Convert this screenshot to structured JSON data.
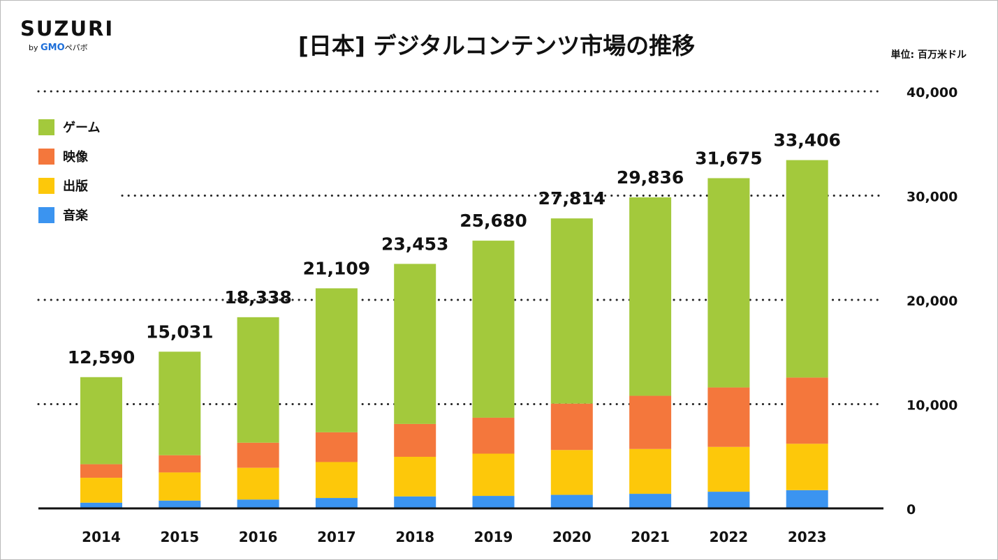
{
  "logo": {
    "main": "SUZURI",
    "by": "by",
    "brand": "GMO",
    "company": "ペパボ"
  },
  "unit_label": "単位: 百万米ドル",
  "colors": {
    "game": "#a3c93c",
    "video": "#f4773c",
    "publishing": "#fdc80a",
    "music": "#3b94f0"
  },
  "chart_data": {
    "type": "bar",
    "stacked": true,
    "title": "[日本] デジタルコンテンツ市場の推移",
    "xlabel": "",
    "ylabel": "",
    "ylim": [
      0,
      40000
    ],
    "yticks": [
      0,
      10000,
      20000,
      30000,
      40000
    ],
    "ytick_labels": [
      "0",
      "10,000",
      "20,000",
      "30,000",
      "40,000"
    ],
    "grid": "dotted horizontal",
    "legend_position": "top-left",
    "categories": [
      "2014",
      "2015",
      "2016",
      "2017",
      "2018",
      "2019",
      "2020",
      "2021",
      "2022",
      "2023"
    ],
    "series": [
      {
        "key": "music",
        "name": "音楽",
        "values": [
          550,
          750,
          850,
          1000,
          1150,
          1200,
          1300,
          1400,
          1600,
          1750
        ]
      },
      {
        "key": "publishing",
        "name": "出版",
        "values": [
          2390,
          2700,
          3050,
          3450,
          3800,
          4050,
          4300,
          4300,
          4300,
          4450
        ]
      },
      {
        "key": "video",
        "name": "映像",
        "values": [
          1300,
          1650,
          2400,
          2850,
          3150,
          3450,
          4450,
          5100,
          5700,
          6350
        ]
      },
      {
        "key": "game",
        "name": "ゲーム",
        "values": [
          8350,
          9931,
          12038,
          13809,
          15353,
          16980,
          17764,
          19036,
          20075,
          20856
        ]
      }
    ],
    "totals": [
      12590,
      15031,
      18338,
      21109,
      23453,
      25680,
      27814,
      29836,
      31675,
      33406
    ],
    "total_labels": [
      "12,590",
      "15,031",
      "18,338",
      "21,109",
      "23,453",
      "25,680",
      "27,814",
      "29,836",
      "31,675",
      "33,406"
    ]
  }
}
